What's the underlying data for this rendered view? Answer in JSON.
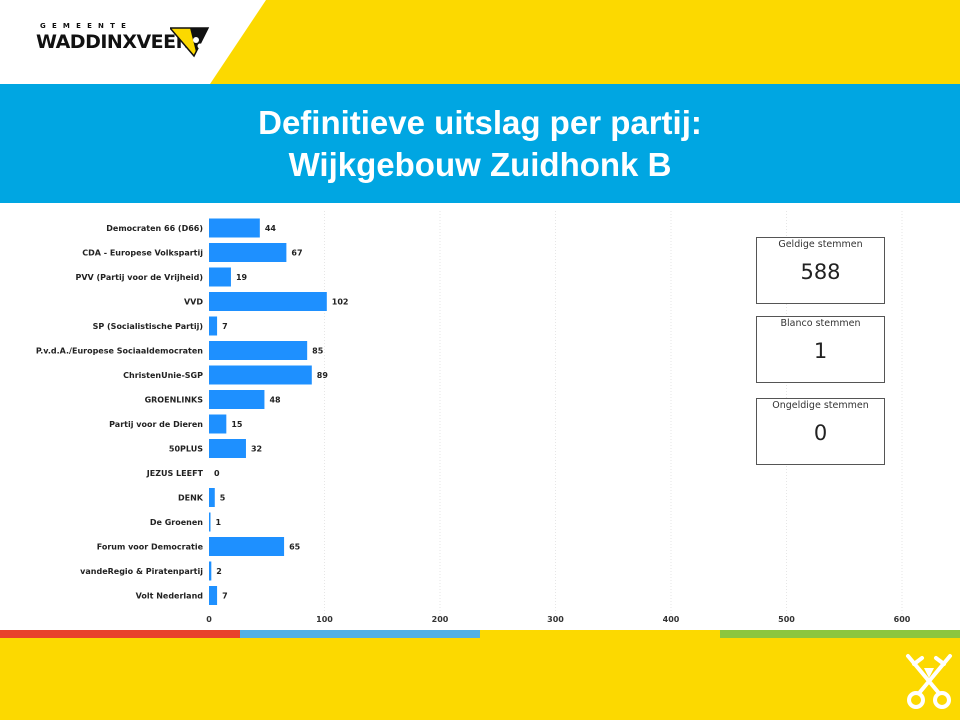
{
  "header": {
    "municipality_small": "GEMEENTE",
    "municipality_name": "WADDINXVEEN"
  },
  "title": {
    "line1": "Definitieve uitslag per partij:",
    "line2": "Wijkgebouw Zuidhonk B"
  },
  "stats": [
    {
      "label": "Geldige stemmen",
      "value": "588"
    },
    {
      "label": "Blanco stemmen",
      "value": "1"
    },
    {
      "label": "Ongeldige stemmen",
      "value": "0"
    }
  ],
  "colors": {
    "bar": "#1e90ff",
    "header_yellow": "#fcd900",
    "title_blue": "#00a6e2",
    "stripe": [
      "#e8412c",
      "#52b0e4",
      "#fcd900",
      "#8cc63f"
    ]
  },
  "chart_data": {
    "type": "bar",
    "orientation": "horizontal",
    "categories": [
      "Democraten 66 (D66)",
      "CDA - Europese Volkspartij",
      "PVV (Partij voor de Vrijheid)",
      "VVD",
      "SP (Socialistische Partij)",
      "P.v.d.A./Europese Sociaaldemocraten",
      "ChristenUnie-SGP",
      "GROENLINKS",
      "Partij voor de Dieren",
      "50PLUS",
      "JEZUS LEEFT",
      "DENK",
      "De Groenen",
      "Forum voor Democratie",
      "vandeRegio & Piratenpartij",
      "Volt Nederland"
    ],
    "values": [
      44,
      67,
      19,
      102,
      7,
      85,
      89,
      48,
      15,
      32,
      0,
      5,
      1,
      65,
      2,
      7
    ],
    "xticks": [
      0,
      100,
      200,
      300,
      400,
      500,
      600
    ],
    "xlim": [
      0,
      630
    ],
    "grid": true,
    "data_labels": true
  }
}
